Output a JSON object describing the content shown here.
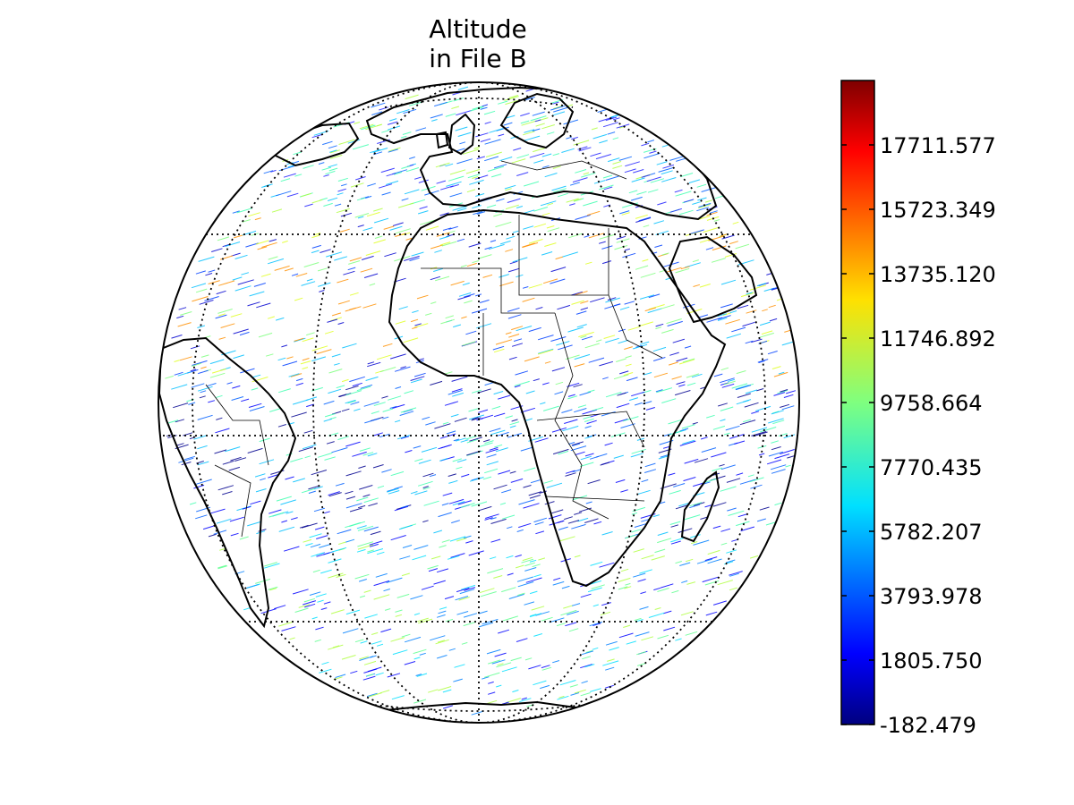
{
  "title": {
    "line1": "Altitude",
    "line2": "in File B"
  },
  "map": {
    "projection": "orthographic",
    "graticule": "dotted",
    "coastlines": true,
    "country_borders": true,
    "colormap": "jet"
  },
  "colorbar": {
    "min": -182.479,
    "max": 19699.806,
    "tick_labels": [
      "17711.577",
      "15723.349",
      "13735.120",
      "11746.892",
      "9758.664",
      "7770.435",
      "5782.207",
      "3793.978",
      "1805.750",
      "-182.479"
    ],
    "tick_values": [
      17711.577,
      15723.349,
      13735.12,
      11746.892,
      9758.664,
      7770.435,
      5782.207,
      3793.978,
      1805.75,
      -182.479
    ]
  }
}
